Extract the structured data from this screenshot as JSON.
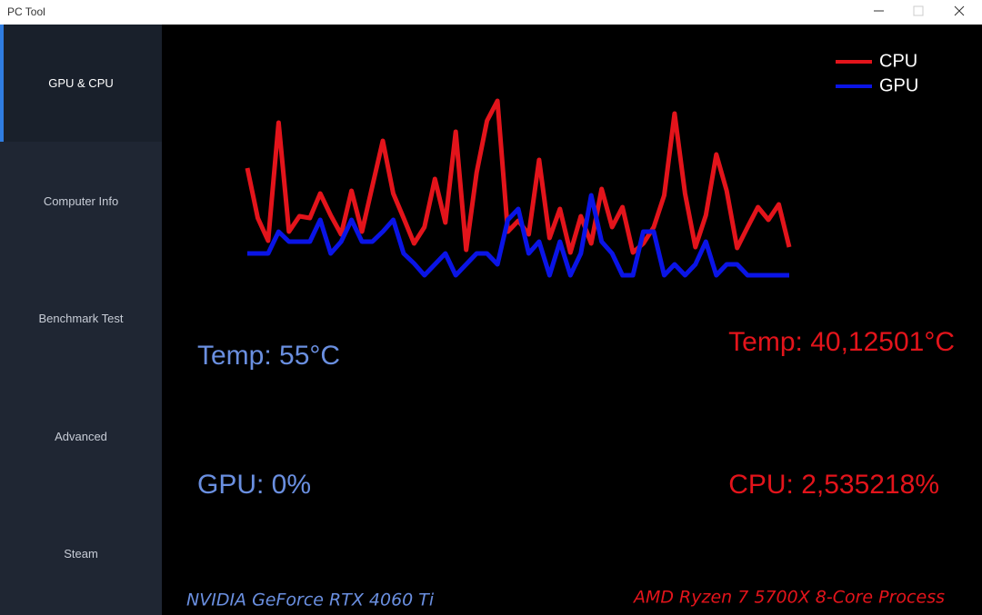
{
  "window": {
    "title": "PC Tool"
  },
  "sidebar": {
    "items": [
      "GPU & CPU",
      "Computer Info",
      "Benchmark Test",
      "Advanced",
      "Steam"
    ]
  },
  "chart_data": {
    "type": "line",
    "ylim": [
      0,
      220
    ],
    "legend": "upper right",
    "series": [
      {
        "name": "CPU",
        "color": "#e3141b",
        "values": [
          133,
          78,
          53,
          183,
          63,
          80,
          78,
          105,
          81,
          60,
          108,
          63,
          113,
          163,
          105,
          78,
          50,
          68,
          121,
          73,
          173,
          43,
          128,
          185,
          207,
          63,
          75,
          60,
          142,
          56,
          88,
          40,
          80,
          50,
          110,
          68,
          90,
          40,
          50,
          68,
          103,
          193,
          105,
          46,
          81,
          148,
          108,
          45,
          68,
          90,
          76,
          93,
          46
        ]
      },
      {
        "name": "GPU",
        "color": "#0a14e6",
        "values": [
          39,
          39,
          39,
          63,
          52,
          52,
          52,
          76,
          39,
          52,
          76,
          52,
          52,
          63,
          76,
          39,
          28,
          15,
          27,
          39,
          15,
          27,
          39,
          39,
          27,
          76,
          88,
          39,
          52,
          15,
          52,
          15,
          39,
          103,
          52,
          39,
          15,
          15,
          63,
          63,
          15,
          27,
          15,
          27,
          52,
          15,
          27,
          27,
          15,
          15,
          15,
          15,
          15
        ]
      }
    ]
  },
  "stats": {
    "gpu_temp": "Temp: 55°C",
    "cpu_temp": "Temp: 40,12501°C",
    "gpu_usage": "GPU: 0%",
    "cpu_usage": "CPU: 2,535218%",
    "gpu_name": "NVIDIA GeForce RTX 4060 Ti",
    "cpu_name": "AMD Ryzen 7 5700X 8-Core Process"
  }
}
